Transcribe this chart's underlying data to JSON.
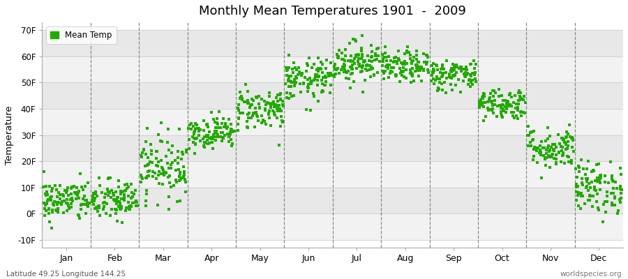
{
  "title": "Monthly Mean Temperatures 1901  -  2009",
  "ylabel": "Temperature",
  "subtitle_left": "Latitude 49.25 Longitude 144.25",
  "subtitle_right": "worldspecies.org",
  "legend_label": "Mean Temp",
  "dot_color": "#22aa00",
  "background_color": "#ffffff",
  "plot_bg_color": "#ffffff",
  "band_color_light": "#f2f2f2",
  "band_color_dark": "#e8e8e8",
  "yticks": [
    -10,
    0,
    10,
    20,
    30,
    40,
    50,
    60,
    70
  ],
  "ytick_labels": [
    "-10F",
    "0F",
    "10F",
    "20F",
    "30F",
    "40F",
    "50F",
    "60F",
    "70F"
  ],
  "months": [
    "Jan",
    "Feb",
    "Mar",
    "Apr",
    "May",
    "Jun",
    "Jul",
    "Aug",
    "Sep",
    "Oct",
    "Nov",
    "Dec"
  ],
  "n_years": 109,
  "seed": 42,
  "monthly_means": [
    5,
    5,
    18,
    31,
    40,
    51,
    58,
    56,
    53,
    42,
    25,
    10
  ],
  "monthly_stds": [
    4,
    4,
    6,
    3,
    4,
    4,
    4,
    3,
    3,
    3,
    4,
    5
  ]
}
